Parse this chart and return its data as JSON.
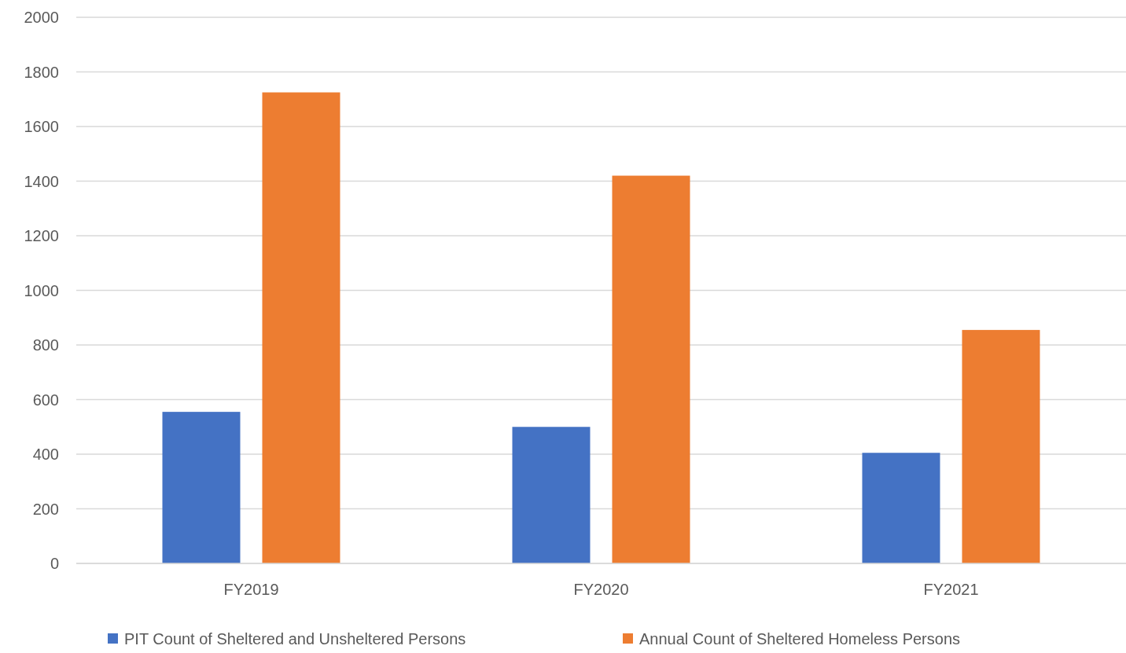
{
  "chart_data": {
    "type": "bar",
    "categories": [
      "FY2019",
      "FY2020",
      "FY2021"
    ],
    "series": [
      {
        "name": "PIT Count of Sheltered and Unsheltered Persons",
        "color": "#4472c4",
        "values": [
          555,
          500,
          405
        ]
      },
      {
        "name": "Annual Count of Sheltered Homeless Persons",
        "color": "#ed7d31",
        "values": [
          1725,
          1420,
          855
        ]
      }
    ],
    "ylim": [
      0,
      2000
    ],
    "yticks": [
      0,
      200,
      400,
      600,
      800,
      1000,
      1200,
      1400,
      1600,
      1800,
      2000
    ],
    "grid": "y",
    "legend": "bottom"
  }
}
